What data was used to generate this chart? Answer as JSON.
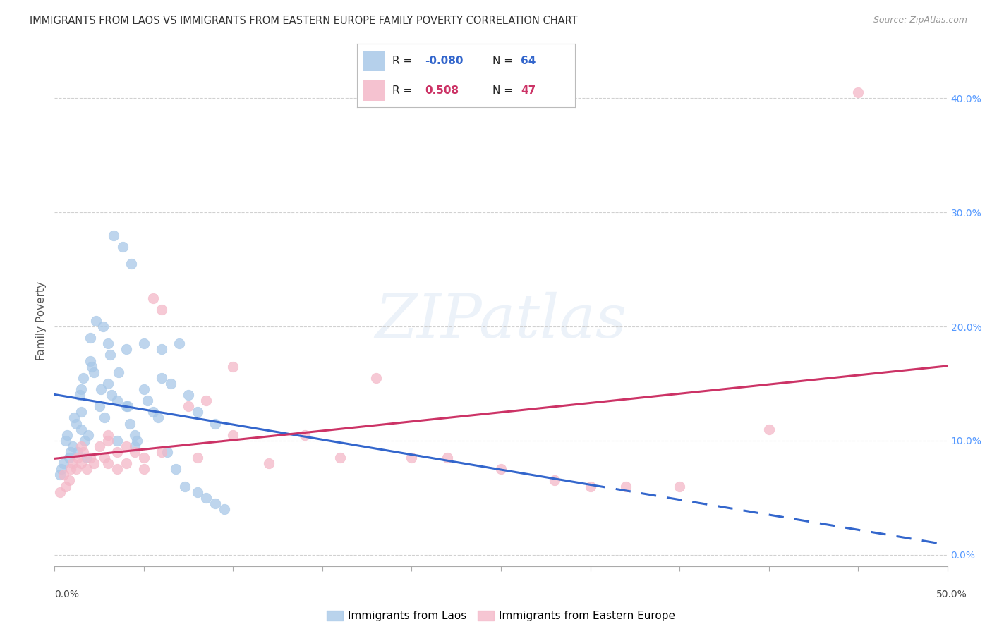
{
  "title": "IMMIGRANTS FROM LAOS VS IMMIGRANTS FROM EASTERN EUROPE FAMILY POVERTY CORRELATION CHART",
  "source": "Source: ZipAtlas.com",
  "ylabel": "Family Poverty",
  "legend_label1": "Immigrants from Laos",
  "legend_label2": "Immigrants from Eastern Europe",
  "R1": "-0.080",
  "N1": "64",
  "R2": "0.508",
  "N2": "47",
  "blue_color": "#a8c8e8",
  "pink_color": "#f4b8c8",
  "blue_line_color": "#3366cc",
  "pink_line_color": "#cc3366",
  "blue_scatter": [
    [
      0.5,
      8.0
    ],
    [
      0.8,
      8.5
    ],
    [
      1.0,
      9.5
    ],
    [
      1.2,
      11.5
    ],
    [
      1.3,
      9.0
    ],
    [
      1.5,
      12.5
    ],
    [
      1.5,
      11.0
    ],
    [
      1.5,
      14.5
    ],
    [
      1.7,
      10.0
    ],
    [
      1.8,
      8.5
    ],
    [
      2.0,
      19.0
    ],
    [
      2.0,
      17.0
    ],
    [
      2.2,
      16.0
    ],
    [
      2.5,
      13.0
    ],
    [
      2.8,
      12.0
    ],
    [
      3.0,
      18.5
    ],
    [
      3.0,
      15.0
    ],
    [
      3.2,
      14.0
    ],
    [
      3.5,
      13.5
    ],
    [
      3.5,
      10.0
    ],
    [
      4.0,
      18.0
    ],
    [
      4.0,
      13.0
    ],
    [
      4.2,
      11.5
    ],
    [
      4.5,
      10.5
    ],
    [
      4.5,
      9.5
    ],
    [
      5.0,
      18.5
    ],
    [
      5.0,
      14.5
    ],
    [
      5.5,
      12.5
    ],
    [
      6.0,
      18.0
    ],
    [
      6.0,
      15.5
    ],
    [
      6.5,
      15.0
    ],
    [
      7.0,
      18.5
    ],
    [
      7.5,
      14.0
    ],
    [
      8.0,
      12.5
    ],
    [
      9.0,
      11.5
    ],
    [
      0.3,
      7.0
    ],
    [
      0.4,
      7.5
    ],
    [
      0.6,
      10.0
    ],
    [
      0.7,
      10.5
    ],
    [
      0.9,
      9.0
    ],
    [
      1.1,
      12.0
    ],
    [
      1.6,
      15.5
    ],
    [
      2.3,
      20.5
    ],
    [
      2.7,
      20.0
    ],
    [
      3.3,
      28.0
    ],
    [
      3.8,
      27.0
    ],
    [
      4.3,
      25.5
    ],
    [
      1.4,
      14.0
    ],
    [
      1.9,
      10.5
    ],
    [
      2.1,
      16.5
    ],
    [
      2.6,
      14.5
    ],
    [
      3.1,
      17.5
    ],
    [
      3.6,
      16.0
    ],
    [
      4.1,
      13.0
    ],
    [
      4.6,
      10.0
    ],
    [
      5.2,
      13.5
    ],
    [
      5.8,
      12.0
    ],
    [
      6.3,
      9.0
    ],
    [
      6.8,
      7.5
    ],
    [
      7.3,
      6.0
    ],
    [
      8.0,
      5.5
    ],
    [
      8.5,
      5.0
    ],
    [
      9.0,
      4.5
    ],
    [
      9.5,
      4.0
    ]
  ],
  "pink_scatter": [
    [
      0.5,
      7.0
    ],
    [
      0.8,
      6.5
    ],
    [
      1.0,
      8.0
    ],
    [
      1.2,
      7.5
    ],
    [
      1.5,
      9.5
    ],
    [
      1.5,
      8.0
    ],
    [
      1.8,
      7.5
    ],
    [
      2.0,
      8.5
    ],
    [
      2.2,
      8.0
    ],
    [
      2.5,
      9.5
    ],
    [
      2.8,
      8.5
    ],
    [
      3.0,
      10.5
    ],
    [
      3.0,
      10.0
    ],
    [
      3.5,
      9.0
    ],
    [
      3.5,
      7.5
    ],
    [
      4.0,
      9.5
    ],
    [
      4.5,
      9.0
    ],
    [
      5.0,
      8.5
    ],
    [
      5.5,
      22.5
    ],
    [
      6.0,
      21.5
    ],
    [
      0.3,
      5.5
    ],
    [
      0.6,
      6.0
    ],
    [
      0.9,
      7.5
    ],
    [
      1.3,
      8.5
    ],
    [
      1.6,
      9.0
    ],
    [
      7.5,
      13.0
    ],
    [
      8.5,
      13.5
    ],
    [
      10.0,
      16.5
    ],
    [
      12.0,
      8.0
    ],
    [
      14.0,
      10.5
    ],
    [
      16.0,
      8.5
    ],
    [
      18.0,
      15.5
    ],
    [
      20.0,
      8.5
    ],
    [
      22.0,
      8.5
    ],
    [
      25.0,
      7.5
    ],
    [
      28.0,
      6.5
    ],
    [
      30.0,
      6.0
    ],
    [
      32.0,
      6.0
    ],
    [
      35.0,
      6.0
    ],
    [
      40.0,
      11.0
    ],
    [
      3.0,
      8.0
    ],
    [
      4.0,
      8.0
    ],
    [
      5.0,
      7.5
    ],
    [
      6.0,
      9.0
    ],
    [
      8.0,
      8.5
    ],
    [
      10.0,
      10.5
    ],
    [
      45.0,
      40.5
    ]
  ],
  "xlim": [
    0,
    50
  ],
  "ylim": [
    -1,
    42
  ],
  "y_ticks": [
    0,
    10,
    20,
    30,
    40
  ],
  "y_tick_labels_right": [
    "0.0%",
    "10.0%",
    "20.0%",
    "30.0%",
    "40.0%"
  ],
  "background_color": "#ffffff",
  "grid_color": "#cccccc",
  "blue_solid_end": 30,
  "pink_line_start": 0,
  "pink_line_end": 50
}
